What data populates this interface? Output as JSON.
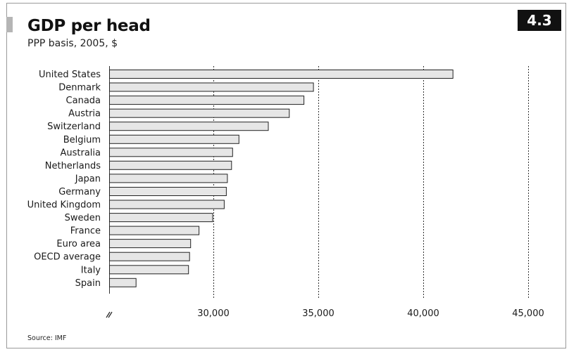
{
  "header": {
    "title": "GDP per head",
    "subtitle": "PPP basis, 2005, $",
    "badge": "4.3"
  },
  "footer": {
    "source": "Source: IMF"
  },
  "chart_data": {
    "type": "bar",
    "orientation": "horizontal",
    "title": "GDP per head",
    "subtitle": "PPP basis, 2005, $",
    "categories": [
      "United States",
      "Denmark",
      "Canada",
      "Austria",
      "Switzerland",
      "Belgium",
      "Australia",
      "Netherlands",
      "Japan",
      "Germany",
      "United Kingdom",
      "Sweden",
      "France",
      "Euro area",
      "OECD average",
      "Italy",
      "Spain"
    ],
    "values": [
      41400,
      34750,
      34300,
      33600,
      32600,
      31200,
      30900,
      30850,
      30650,
      30600,
      30500,
      29950,
      29300,
      28900,
      28850,
      28800,
      26300
    ],
    "xlim": [
      25000,
      45000
    ],
    "xticks": [
      30000,
      35000,
      40000,
      45000
    ],
    "xtick_labels": [
      "30,000",
      "35,000",
      "40,000",
      "45,000"
    ],
    "axis_break": true,
    "grid": "vertical dotted",
    "bar_color": "#e6e6e6",
    "bar_edge_color": "#222222"
  }
}
